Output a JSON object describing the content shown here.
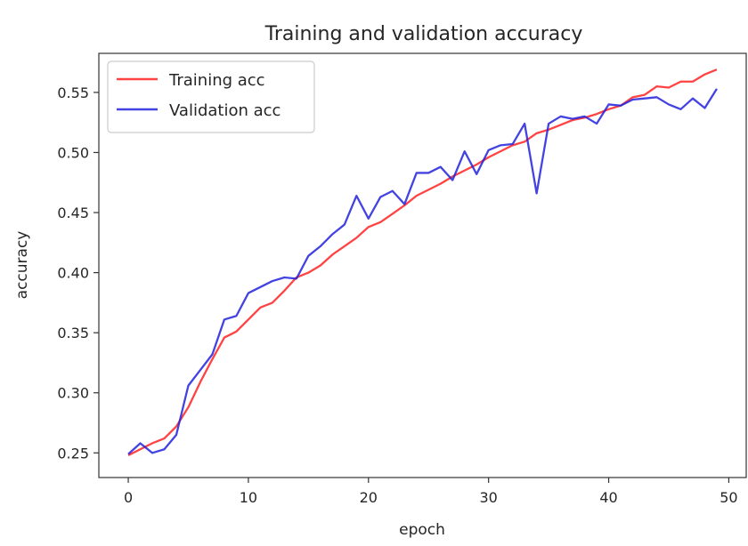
{
  "chart_data": {
    "type": "line",
    "title": "Training and validation accuracy",
    "xlabel": "epoch",
    "ylabel": "accuracy",
    "xlim": [
      -2.45,
      51.45
    ],
    "ylim": [
      0.2295,
      0.5825
    ],
    "xticks": [
      0,
      10,
      20,
      30,
      40,
      50
    ],
    "yticks": [
      0.25,
      0.3,
      0.35,
      0.4,
      0.45,
      0.5,
      0.55
    ],
    "xtick_labels": [
      "0",
      "10",
      "20",
      "30",
      "40",
      "50"
    ],
    "ytick_labels": [
      "0.25",
      "0.30",
      "0.35",
      "0.40",
      "0.45",
      "0.50",
      "0.55"
    ],
    "grid": false,
    "legend_position": "top-left",
    "x": [
      0,
      1,
      2,
      3,
      4,
      5,
      6,
      7,
      8,
      9,
      10,
      11,
      12,
      13,
      14,
      15,
      16,
      17,
      18,
      19,
      20,
      21,
      22,
      23,
      24,
      25,
      26,
      27,
      28,
      29,
      30,
      31,
      32,
      33,
      34,
      35,
      36,
      37,
      38,
      39,
      40,
      41,
      42,
      43,
      44,
      45,
      46,
      47,
      48,
      49
    ],
    "series": [
      {
        "name": "Training acc",
        "color": "#ff2222",
        "values": [
          0.248,
          0.253,
          0.258,
          0.262,
          0.272,
          0.288,
          0.309,
          0.328,
          0.346,
          0.351,
          0.361,
          0.371,
          0.375,
          0.385,
          0.396,
          0.4,
          0.406,
          0.415,
          0.422,
          0.429,
          0.438,
          0.442,
          0.449,
          0.456,
          0.464,
          0.469,
          0.474,
          0.48,
          0.485,
          0.49,
          0.496,
          0.501,
          0.506,
          0.509,
          0.516,
          0.519,
          0.523,
          0.527,
          0.529,
          0.532,
          0.536,
          0.539,
          0.546,
          0.548,
          0.555,
          0.554,
          0.559,
          0.559,
          0.565,
          0.569
        ]
      },
      {
        "name": "Validation acc",
        "color": "#2222dd",
        "values": [
          0.249,
          0.258,
          0.25,
          0.253,
          0.265,
          0.306,
          0.319,
          0.332,
          0.361,
          0.364,
          0.383,
          0.388,
          0.393,
          0.396,
          0.395,
          0.414,
          0.422,
          0.432,
          0.44,
          0.464,
          0.445,
          0.463,
          0.468,
          0.457,
          0.483,
          0.483,
          0.488,
          0.477,
          0.501,
          0.482,
          0.502,
          0.506,
          0.507,
          0.524,
          0.466,
          0.524,
          0.53,
          0.528,
          0.53,
          0.524,
          0.54,
          0.539,
          0.544,
          0.545,
          0.546,
          0.54,
          0.536,
          0.545,
          0.537,
          0.553
        ]
      }
    ]
  }
}
